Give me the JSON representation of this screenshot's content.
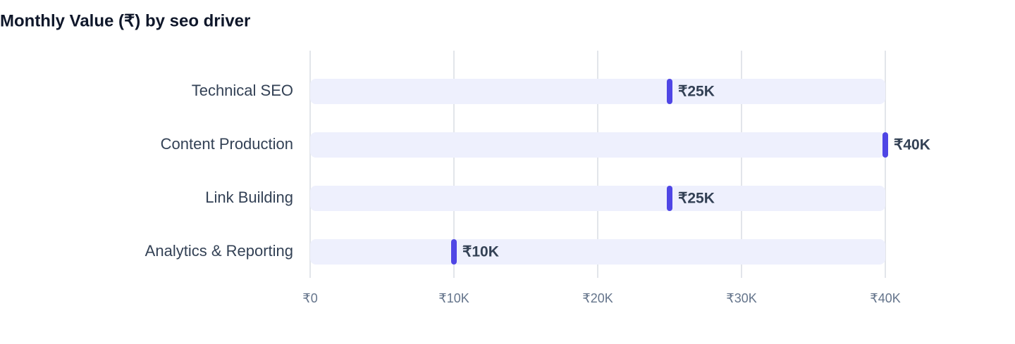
{
  "chart_data": {
    "type": "bar",
    "title": "Monthly Value (₹) by seo driver",
    "categories": [
      "Technical SEO",
      "Content Production",
      "Link Building",
      "Analytics & Reporting"
    ],
    "values": [
      25000,
      40000,
      25000,
      10000
    ],
    "value_labels": [
      "₹25K",
      "₹40K",
      "₹25K",
      "₹10K"
    ],
    "color": "#4f46e5",
    "xlim": [
      0,
      40000
    ],
    "xticks": [
      {
        "value": 0,
        "label": "₹0"
      },
      {
        "value": 10000,
        "label": "₹10K"
      },
      {
        "value": 20000,
        "label": "₹20K"
      },
      {
        "value": 30000,
        "label": "₹30K"
      },
      {
        "value": 40000,
        "label": "₹40K"
      }
    ],
    "grid": true
  }
}
